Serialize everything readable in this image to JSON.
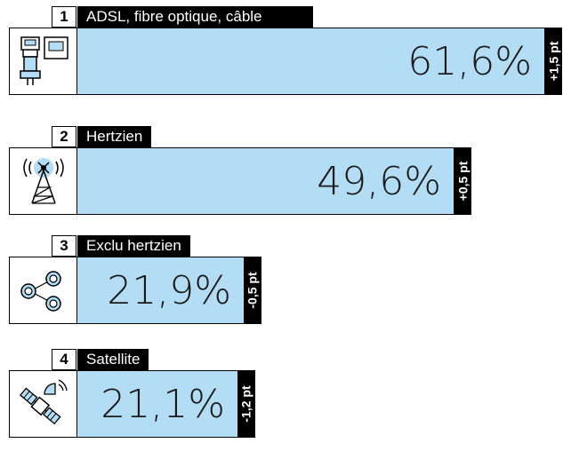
{
  "chart_data": {
    "type": "bar",
    "unit": "%",
    "xlim": [
      0,
      61.6
    ],
    "items": [
      {
        "rank": "1",
        "label": "ADSL, fibre optique, câble",
        "value": 61.6,
        "value_label": "61,6%",
        "delta_label": "+1,5 pt",
        "icon": "router-adsl-icon"
      },
      {
        "rank": "2",
        "label": "Hertzien",
        "value": 49.6,
        "value_label": "49,6%",
        "delta_label": "+0,5 pt",
        "icon": "antenna-tower-icon"
      },
      {
        "rank": "3",
        "label": "Exclu hertzien",
        "value": 21.9,
        "value_label": "21,9%",
        "delta_label": "-0,5 pt",
        "icon": "share-nodes-icon"
      },
      {
        "rank": "4",
        "label": "Satellite",
        "value": 21.1,
        "value_label": "21,1%",
        "delta_label": "-1,2 pt",
        "icon": "satellite-icon"
      }
    ]
  },
  "colors": {
    "bar_fill": "#b3dcf5",
    "label_bg": "#000000",
    "delta_bg": "#000000",
    "icon_accent": "#b3dcf5"
  }
}
